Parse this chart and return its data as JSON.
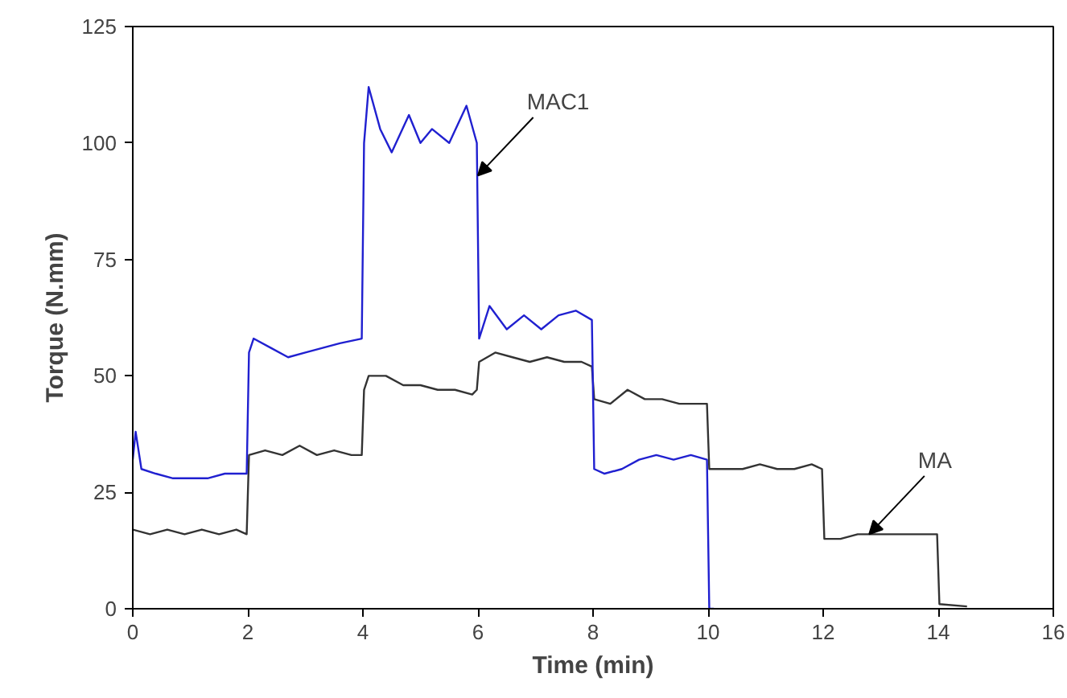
{
  "chart_data": {
    "type": "line",
    "xlabel": "Time (min)",
    "ylabel": "Torque (N.mm)",
    "xlim": [
      0,
      16
    ],
    "ylim": [
      0,
      125
    ],
    "xticks": [
      0,
      2,
      4,
      6,
      8,
      10,
      12,
      14,
      16
    ],
    "yticks": [
      0,
      25,
      50,
      75,
      100,
      125
    ],
    "marker": "none",
    "line_style": "solid",
    "series": [
      {
        "color": "#333333",
        "x": [
          0,
          0.3,
          0.6,
          0.9,
          1.2,
          1.5,
          1.8,
          1.98,
          2.02,
          2.3,
          2.6,
          2.9,
          3.2,
          3.5,
          3.8,
          3.98,
          4.02,
          4.1,
          4.4,
          4.7,
          5.0,
          5.3,
          5.6,
          5.9,
          5.98,
          6.02,
          6.3,
          6.6,
          6.9,
          7.2,
          7.5,
          7.8,
          7.98,
          8.02,
          8.3,
          8.6,
          8.9,
          9.2,
          9.5,
          9.8,
          9.98,
          10.02,
          10.3,
          10.6,
          10.9,
          11.2,
          11.5,
          11.8,
          11.98,
          12.02,
          12.3,
          12.6,
          12.9,
          13.2,
          13.5,
          13.8,
          13.98,
          14.02,
          14.5
        ],
        "values": [
          17,
          16,
          17,
          16,
          17,
          16,
          17,
          16,
          33,
          34,
          33,
          35,
          33,
          34,
          33,
          33,
          47,
          50,
          50,
          48,
          48,
          47,
          47,
          46,
          47,
          53,
          55,
          54,
          53,
          54,
          53,
          53,
          52,
          45,
          44,
          47,
          45,
          45,
          44,
          44,
          44,
          30,
          30,
          30,
          31,
          30,
          30,
          31,
          30,
          15,
          15,
          16,
          16,
          16,
          16,
          16,
          16,
          1,
          0.5
        ]
      },
      {
        "color": "#2020d0",
        "x": [
          0,
          0.05,
          0.15,
          0.4,
          0.7,
          1.0,
          1.3,
          1.6,
          1.98,
          2.02,
          2.1,
          2.4,
          2.7,
          3.0,
          3.3,
          3.6,
          3.98,
          4.02,
          4.1,
          4.3,
          4.5,
          4.8,
          5.0,
          5.2,
          5.5,
          5.8,
          5.98,
          6.02,
          6.2,
          6.5,
          6.8,
          7.1,
          7.4,
          7.7,
          7.98,
          8.02,
          8.2,
          8.5,
          8.8,
          9.1,
          9.4,
          9.7,
          9.98,
          10.02,
          10.1
        ],
        "values": [
          32,
          38,
          30,
          29,
          28,
          28,
          28,
          29,
          29,
          55,
          58,
          56,
          54,
          55,
          56,
          57,
          58,
          100,
          112,
          103,
          98,
          106,
          100,
          103,
          100,
          108,
          100,
          58,
          65,
          60,
          63,
          60,
          63,
          64,
          62,
          30,
          29,
          30,
          32,
          33,
          32,
          33,
          32,
          0,
          0
        ]
      }
    ],
    "annotations": [
      {
        "text": "MAC1",
        "x": 6,
        "y": 93
      },
      {
        "text": "MA",
        "x": 12.8,
        "y": 16
      }
    ]
  }
}
